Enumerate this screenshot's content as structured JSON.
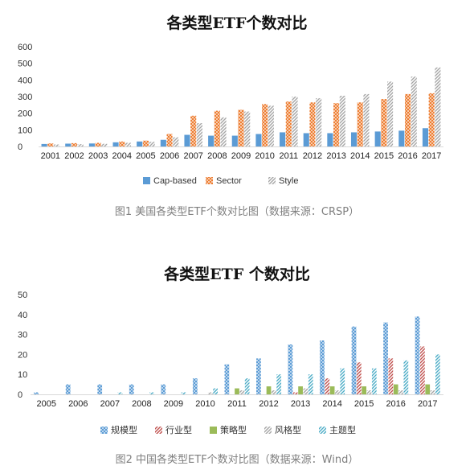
{
  "chart_data": [
    {
      "type": "bar",
      "title": "各类型ETF个数对比",
      "categories": [
        "2001",
        "2002",
        "2003",
        "2004",
        "2005",
        "2006",
        "2007",
        "2008",
        "2009",
        "2010",
        "2011",
        "2012",
        "2013",
        "2014",
        "2015",
        "2016",
        "2017"
      ],
      "ylim": [
        0,
        600
      ],
      "yticks": [
        "0",
        "100",
        "200",
        "300",
        "400",
        "500",
        "600"
      ],
      "grid": false,
      "legend": "bottom",
      "series": [
        {
          "name": "Cap-based",
          "color": "#5b9bd5",
          "pattern": "solid",
          "values": [
            15,
            17,
            18,
            25,
            30,
            40,
            70,
            65,
            65,
            75,
            85,
            80,
            80,
            85,
            90,
            95,
            110
          ]
        },
        {
          "name": "Sector",
          "color": "#ed7d31",
          "pattern": "cross",
          "values": [
            18,
            20,
            22,
            30,
            35,
            75,
            185,
            215,
            220,
            255,
            270,
            265,
            260,
            265,
            285,
            315,
            320
          ]
        },
        {
          "name": "Style",
          "color": "#a5a5a5",
          "pattern": "diag",
          "values": [
            12,
            14,
            16,
            22,
            28,
            55,
            140,
            175,
            210,
            245,
            300,
            290,
            305,
            315,
            390,
            420,
            475
          ]
        }
      ],
      "caption": "图1 美国各类型ETF个数对比图（数据来源：CRSP）"
    },
    {
      "type": "bar",
      "title": "各类型ETF 个数对比",
      "categories": [
        "2005",
        "2006",
        "2007",
        "2008",
        "2009",
        "2010",
        "2011",
        "2012",
        "2013",
        "2014",
        "2015",
        "2016",
        "2017"
      ],
      "ylim": [
        0,
        50
      ],
      "yticks": [
        "0",
        "10",
        "20",
        "30",
        "40",
        "50"
      ],
      "grid": false,
      "legend": "bottom",
      "series": [
        {
          "name": "规模型",
          "color": "#5b9bd5",
          "pattern": "cross",
          "values": [
            1,
            5,
            5,
            5,
            5,
            8,
            15,
            18,
            25,
            27,
            34,
            36,
            39
          ]
        },
        {
          "name": "行业型",
          "color": "#c0504d",
          "pattern": "diag",
          "values": [
            0,
            0,
            0,
            0,
            0,
            0,
            0,
            0,
            1,
            8,
            16,
            18,
            24
          ]
        },
        {
          "name": "策略型",
          "color": "#9bbb59",
          "pattern": "solid",
          "values": [
            0,
            0,
            0,
            0,
            0,
            0,
            3,
            4,
            4,
            4,
            4,
            5,
            5
          ]
        },
        {
          "name": "风格型",
          "color": "#a5a5a5",
          "pattern": "diag",
          "values": [
            0,
            0,
            0,
            0,
            0,
            1,
            2,
            2,
            3,
            2,
            2,
            2,
            2
          ]
        },
        {
          "name": "主题型",
          "color": "#4bacc6",
          "pattern": "diag",
          "values": [
            0,
            0,
            1,
            1,
            1,
            3,
            8,
            10,
            10,
            13,
            13,
            17,
            20
          ]
        }
      ],
      "caption": "图2 中国各类型ETF个数对比图（数据来源：Wind）"
    }
  ]
}
